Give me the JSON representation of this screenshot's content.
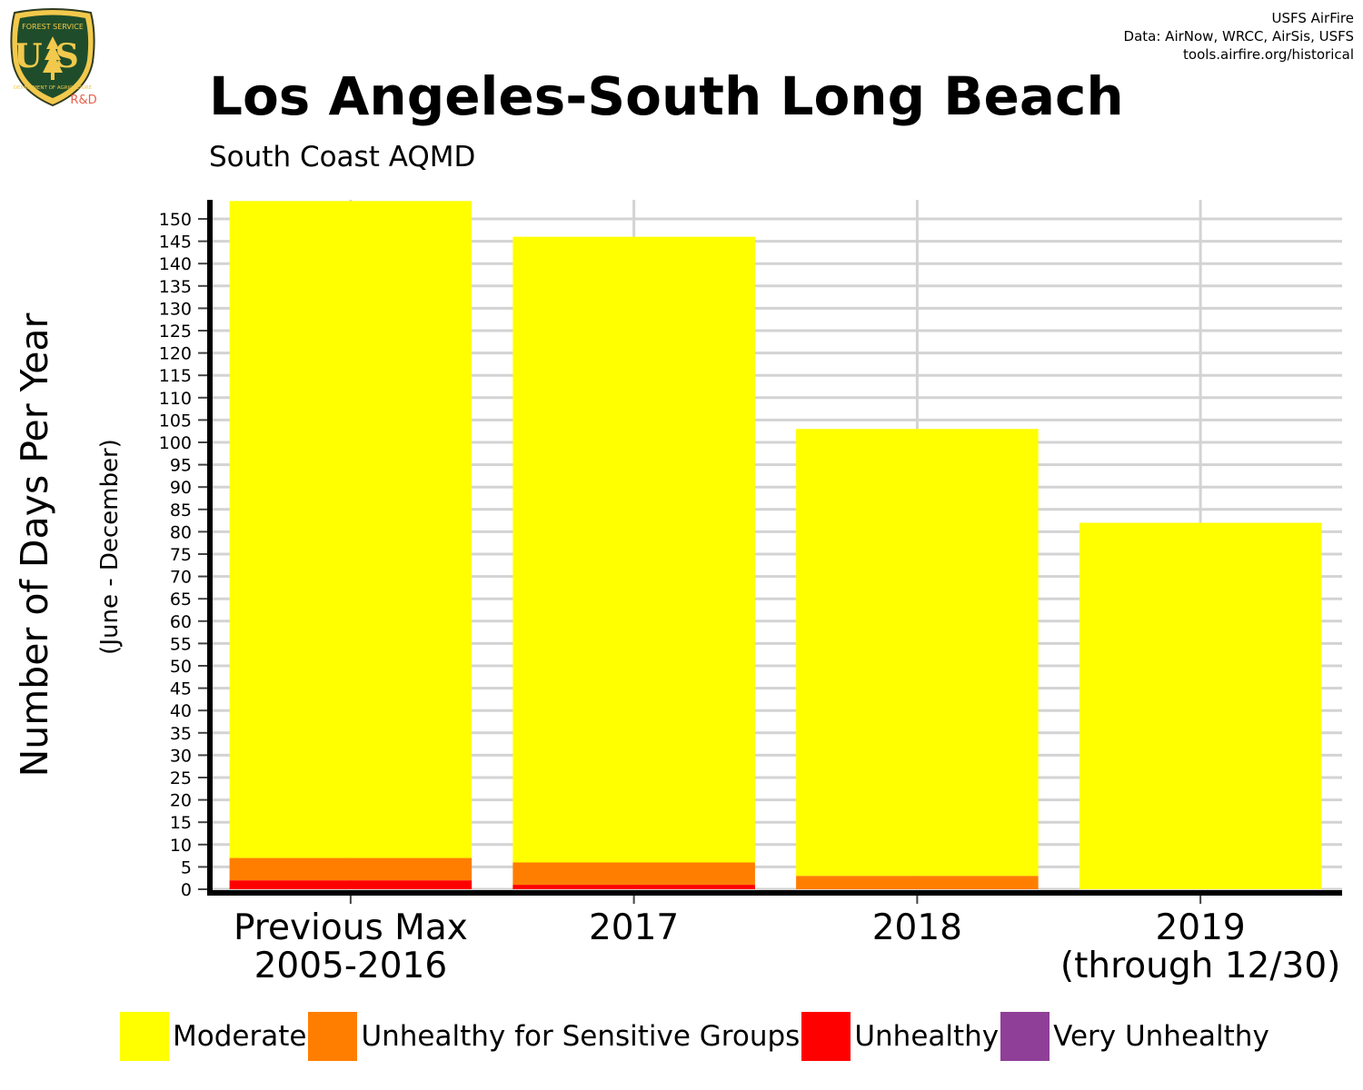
{
  "header": {
    "title": "Los Angeles-South Long Beach",
    "subtitle": "South Coast AQMD",
    "credits": [
      "USFS AirFire",
      "Data: AirNow, WRCC, AirSis, USFS",
      "tools.airfire.org/historical"
    ]
  },
  "logo": {
    "top_text": "FOREST SERVICE",
    "main_text": "US",
    "bottom_text": "DEPARTMENT OF AGRICULTURE",
    "badge_text": "R&D"
  },
  "chart_data": {
    "type": "bar",
    "stacked": true,
    "title": "Los Angeles-South Long Beach",
    "subtitle": "South Coast AQMD",
    "xlabel": "",
    "ylabel": "Number of Days Per Year",
    "ylabel_sub": "(June - December)",
    "categories": [
      [
        "Previous Max",
        "2005-2016"
      ],
      [
        "2017"
      ],
      [
        "2018"
      ],
      [
        "2019",
        "(through 12/30)"
      ]
    ],
    "series": [
      {
        "name": "Unhealthy",
        "color": "#ff0000",
        "values": [
          2,
          1,
          0,
          0
        ]
      },
      {
        "name": "Unhealthy for Sensitive Groups",
        "color": "#ff7e00",
        "values": [
          5,
          5,
          3,
          0
        ]
      },
      {
        "name": "Moderate",
        "color": "#ffff00",
        "values": [
          147,
          140,
          100,
          82
        ]
      },
      {
        "name": "Very Unhealthy",
        "color": "#8f3f97",
        "values": [
          0,
          0,
          0,
          0
        ]
      }
    ],
    "yticks": [
      0,
      5,
      10,
      15,
      20,
      25,
      30,
      35,
      40,
      45,
      50,
      55,
      60,
      65,
      70,
      75,
      80,
      85,
      90,
      95,
      100,
      105,
      110,
      115,
      120,
      125,
      130,
      135,
      140,
      145,
      150
    ],
    "ylim": [
      0,
      154
    ],
    "grid": true,
    "legend_position": "bottom",
    "legend_order": [
      "Moderate",
      "Unhealthy for Sensitive Groups",
      "Unhealthy",
      "Very Unhealthy"
    ]
  }
}
